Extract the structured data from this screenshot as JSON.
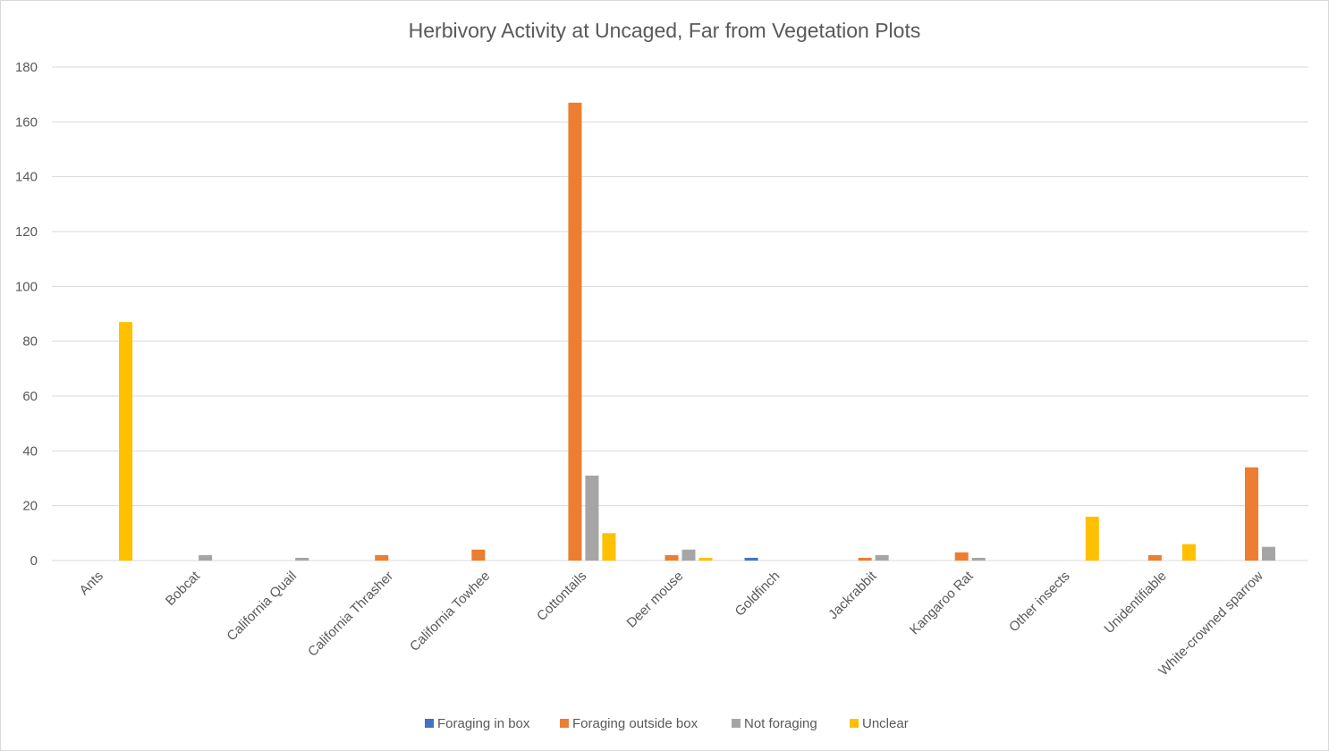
{
  "chart_data": {
    "type": "bar",
    "title": "Herbivory Activity at Uncaged, Far from Vegetation Plots",
    "xlabel": "",
    "ylabel": "",
    "ylim": [
      0,
      180
    ],
    "yticks": [
      0,
      20,
      40,
      60,
      80,
      100,
      120,
      140,
      160,
      180
    ],
    "grid": true,
    "legend_position": "bottom",
    "categories": [
      "Ants",
      "Bobcat",
      "California Quail",
      "California Thrasher",
      "California Towhee",
      "Cottontails",
      "Deer mouse",
      "Goldfinch",
      "Jackrabbit",
      "Kangaroo Rat",
      "Other insects",
      "Unidentifiable",
      "White-crowned sparrow"
    ],
    "series": [
      {
        "name": "Foraging in box",
        "color": "#4472c4",
        "values": [
          0,
          0,
          0,
          0,
          0,
          0,
          0,
          1,
          0,
          0,
          0,
          0,
          0
        ]
      },
      {
        "name": "Foraging outside box",
        "color": "#ed7d31",
        "values": [
          0,
          0,
          0,
          2,
          4,
          167,
          2,
          0,
          1,
          3,
          0,
          2,
          34
        ]
      },
      {
        "name": "Not foraging",
        "color": "#a5a5a5",
        "values": [
          0,
          2,
          1,
          0,
          0,
          31,
          4,
          0,
          2,
          1,
          0,
          0,
          5
        ]
      },
      {
        "name": "Unclear",
        "color": "#ffc000",
        "values": [
          87,
          0,
          0,
          0,
          0,
          10,
          1,
          0,
          0,
          0,
          16,
          6,
          0
        ]
      }
    ]
  }
}
